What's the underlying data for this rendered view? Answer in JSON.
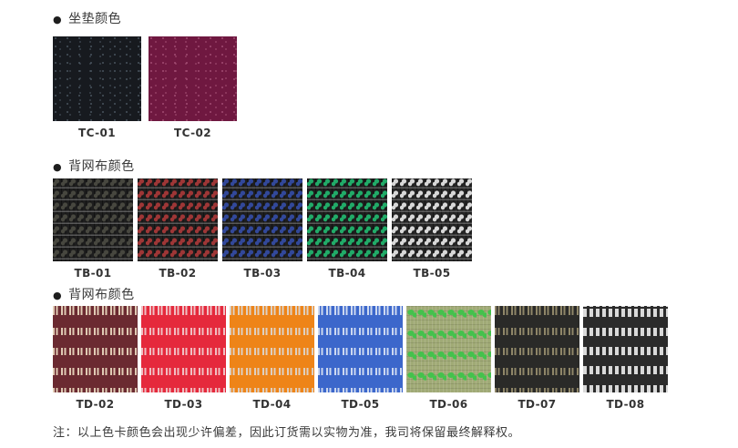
{
  "page": {
    "background": "#ffffff",
    "text_color": "#3a3a3a"
  },
  "sections": [
    {
      "id": "seat-cushion-colors",
      "bullet": "●",
      "title": "坐垫颜色",
      "swatches": [
        {
          "code": "TC-01",
          "pattern": "speckle",
          "base": "#171a1f",
          "accent": "#4a5560"
        },
        {
          "code": "TC-02",
          "pattern": "speckle",
          "base": "#6f1840",
          "accent": "#a34e74"
        }
      ]
    },
    {
      "id": "back-mesh-colors-tb",
      "bullet": "●",
      "title": "背网布颜色",
      "swatches": [
        {
          "code": "TB-01",
          "pattern": "dotmesh",
          "base": "#1e1e1e",
          "accent": "#47473f"
        },
        {
          "code": "TB-02",
          "pattern": "dotmesh",
          "base": "#1e1e1e",
          "accent": "#9e3636"
        },
        {
          "code": "TB-03",
          "pattern": "dotmesh",
          "base": "#1e1e1e",
          "accent": "#32489a"
        },
        {
          "code": "TB-04",
          "pattern": "dotmesh",
          "base": "#1e1e1e",
          "accent": "#21ab68"
        },
        {
          "code": "TB-05",
          "pattern": "dotmesh",
          "base": "#262626",
          "accent": "#d8d8d8"
        }
      ]
    },
    {
      "id": "back-mesh-colors-td",
      "bullet": "●",
      "title": "背网布颜色",
      "swatches": [
        {
          "code": "TD-02",
          "pattern": "dashband",
          "base": "#6b2a31",
          "accent": "#e0cbb4"
        },
        {
          "code": "TD-03",
          "pattern": "dashband",
          "base": "#e5293c",
          "accent": "#f0bfc2"
        },
        {
          "code": "TD-04",
          "pattern": "dashband",
          "base": "#ee8418",
          "accent": "#ddd0c2"
        },
        {
          "code": "TD-05",
          "pattern": "dashband",
          "base": "#3c67cb",
          "accent": "#ccd8f0"
        },
        {
          "code": "TD-06",
          "pattern": "blobband",
          "base": "#a0aa76",
          "accent": "#44c24c"
        },
        {
          "code": "TD-07",
          "pattern": "dashband",
          "base": "#2a2a28",
          "accent": "#8f8668"
        },
        {
          "code": "TD-08",
          "pattern": "dashband-bold",
          "base": "#2b2b2b",
          "accent": "#d9d9d9"
        }
      ]
    }
  ],
  "note": "注：以上色卡颜色会出现少许偏差，因此订货需以实物为准，我司将保留最终解释权。"
}
